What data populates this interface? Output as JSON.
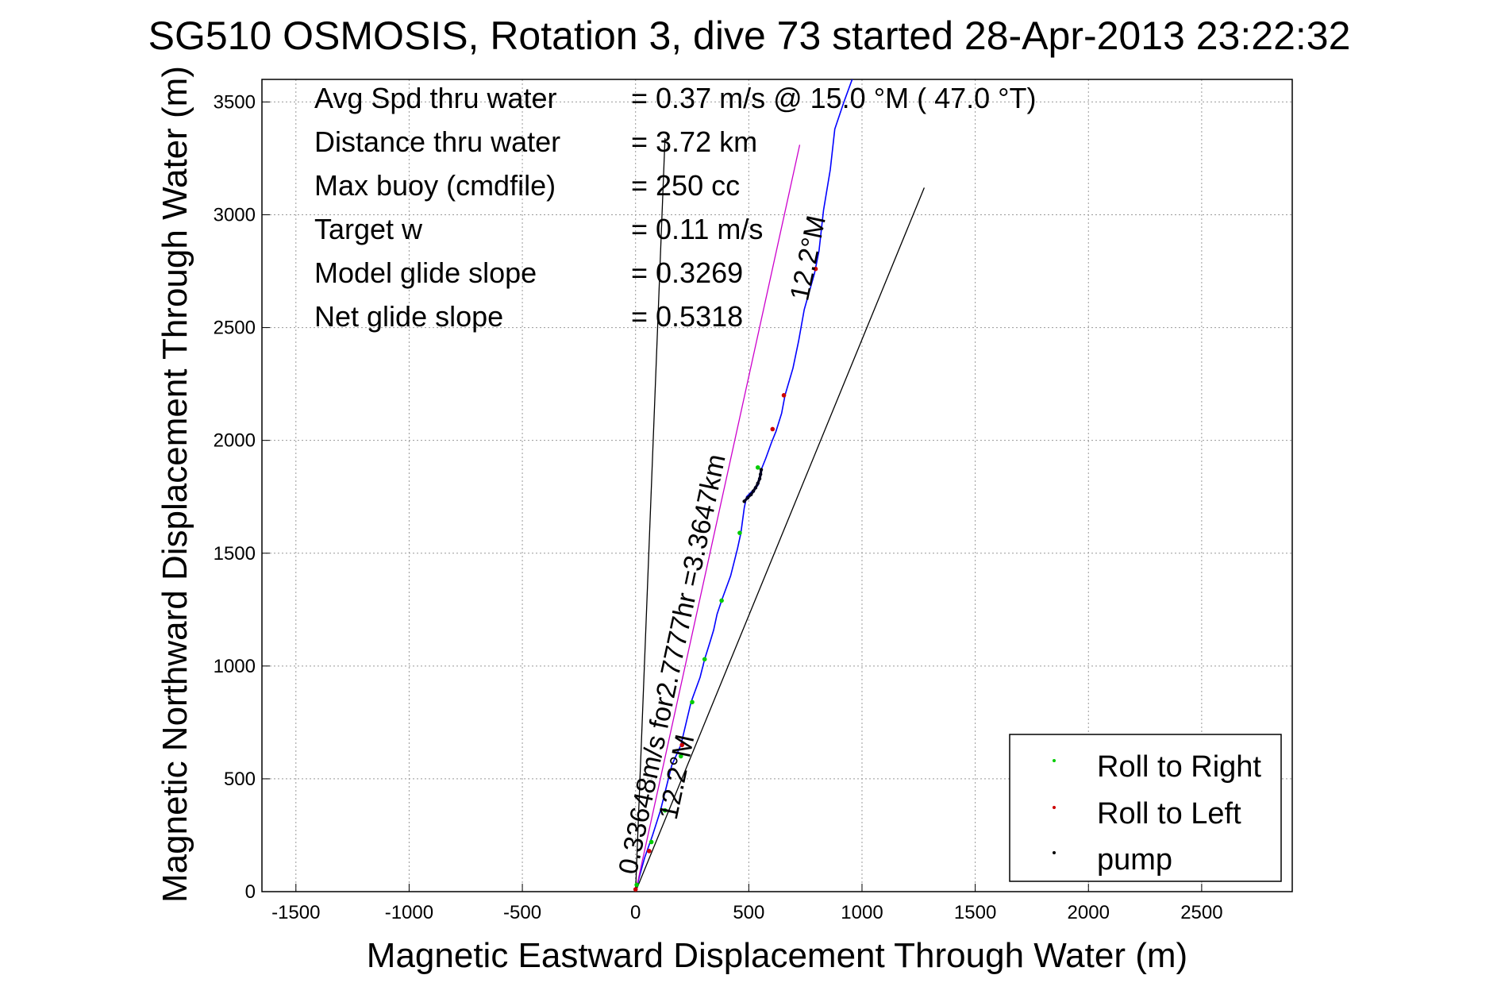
{
  "title": "SG510 OSMOSIS, Rotation 3, dive 73 started 28-Apr-2013 23:22:32",
  "stats": [
    {
      "label": "Avg Spd thru water",
      "value": "=  0.37 m/s @  15.0 °M ( 47.0 °T)"
    },
    {
      "label": "Distance thru water",
      "value": "=  3.72 km"
    },
    {
      "label": "Max buoy (cmdfile)",
      "value": "= 250 cc"
    },
    {
      "label": "Target w",
      "value": "= 0.11 m/s"
    },
    {
      "label": "Model glide slope",
      "value": "= 0.3269"
    },
    {
      "label": "Net glide slope",
      "value": "= 0.5318"
    }
  ],
  "legend": [
    {
      "label": "Roll to Right",
      "color": "#00cc00"
    },
    {
      "label": "Roll to Left",
      "color": "#cc0000"
    },
    {
      "label": "pump",
      "color": "#000000"
    }
  ],
  "chart_data": {
    "type": "line",
    "title": "SG510 OSMOSIS, Rotation 3, dive 73 started 28-Apr-2013 23:22:32",
    "xlabel": "Magnetic Eastward Displacement Through Water (m)",
    "ylabel": "Magnetic Northward Displacement Through Water (m)",
    "xlim": [
      -1650,
      2900
    ],
    "ylim": [
      0,
      3600
    ],
    "xticks": [
      -1500,
      -1000,
      -500,
      0,
      500,
      1000,
      1500,
      2000,
      2500
    ],
    "yticks": [
      0,
      500,
      1000,
      1500,
      2000,
      2500,
      3000,
      3500
    ],
    "grid": true,
    "legend_position": "bottom-right",
    "annotations": [
      {
        "text": "12.2°M",
        "x": 800,
        "y": 2800,
        "angle": -78
      },
      {
        "text": "0.33648m/s for2.7777hr =3.3647km",
        "x": 200,
        "y": 1000,
        "angle": -78
      },
      {
        "text": "12.2°M",
        "x": 220,
        "y": 500,
        "angle": -78
      }
    ],
    "series": [
      {
        "name": "",
        "color": "#0000ff",
        "values": [
          [
            0,
            0
          ],
          [
            15,
            60
          ],
          [
            40,
            150
          ],
          [
            75,
            250
          ],
          [
            110,
            360
          ],
          [
            160,
            560
          ],
          [
            200,
            650
          ],
          [
            245,
            840
          ],
          [
            285,
            950
          ],
          [
            305,
            1030
          ],
          [
            330,
            1110
          ],
          [
            345,
            1160
          ],
          [
            360,
            1230
          ],
          [
            380,
            1290
          ],
          [
            420,
            1400
          ],
          [
            450,
            1520
          ],
          [
            465,
            1590
          ],
          [
            480,
            1700
          ],
          [
            490,
            1750
          ],
          [
            540,
            1800
          ],
          [
            555,
            1870
          ],
          [
            575,
            1920
          ],
          [
            600,
            1990
          ],
          [
            620,
            2040
          ],
          [
            645,
            2120
          ],
          [
            660,
            2200
          ],
          [
            695,
            2320
          ],
          [
            720,
            2440
          ],
          [
            745,
            2580
          ],
          [
            790,
            2740
          ],
          [
            810,
            2840
          ],
          [
            830,
            3020
          ],
          [
            860,
            3200
          ],
          [
            880,
            3380
          ],
          [
            920,
            3500
          ],
          [
            960,
            3610
          ]
        ]
      },
      {
        "name": "",
        "color": "#cc00cc",
        "values": [
          [
            0,
            0
          ],
          [
            725,
            3310
          ]
        ]
      },
      {
        "name": "",
        "color": "#000000",
        "values": [
          [
            0,
            0
          ],
          [
            130,
            3340
          ]
        ]
      },
      {
        "name": "",
        "color": "#000000",
        "values": [
          [
            0,
            0
          ],
          [
            1275,
            3120
          ]
        ]
      },
      {
        "name": "Roll to Right",
        "color": "#00cc00",
        "values": [
          [
            5,
            30
          ],
          [
            70,
            220
          ],
          [
            130,
            360
          ],
          [
            200,
            600
          ],
          [
            250,
            840
          ],
          [
            305,
            1030
          ],
          [
            380,
            1290
          ],
          [
            460,
            1590
          ],
          [
            540,
            1880
          ]
        ]
      },
      {
        "name": "Roll to Left",
        "color": "#cc0000",
        "values": [
          [
            0,
            10
          ],
          [
            60,
            180
          ],
          [
            205,
            650
          ],
          [
            605,
            2050
          ],
          [
            655,
            2200
          ],
          [
            795,
            2760
          ]
        ]
      },
      {
        "name": "pump",
        "color": "#000000",
        "values": [
          [
            480,
            1730
          ],
          [
            495,
            1745
          ],
          [
            510,
            1760
          ],
          [
            520,
            1775
          ],
          [
            530,
            1790
          ],
          [
            540,
            1810
          ],
          [
            548,
            1830
          ],
          [
            552,
            1850
          ],
          [
            555,
            1870
          ]
        ]
      }
    ]
  }
}
